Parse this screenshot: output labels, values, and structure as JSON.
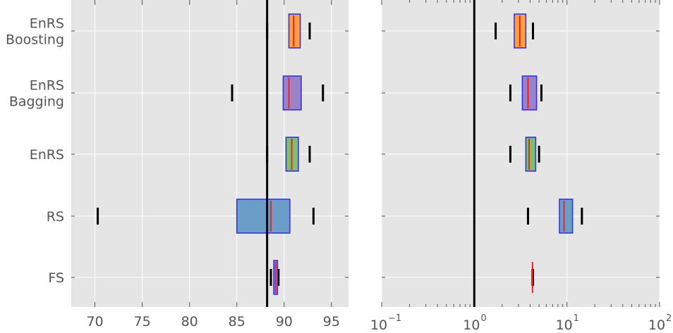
{
  "chart_data": [
    {
      "type": "box",
      "categories": [
        "EnRS Boosting",
        "EnRS Bagging",
        "EnRS",
        "RS",
        "FS"
      ],
      "category_lines": [
        [
          "EnRS",
          "Boosting"
        ],
        [
          "EnRS",
          "Bagging"
        ],
        [
          "EnRS"
        ],
        [
          "RS"
        ],
        [
          "FS"
        ]
      ],
      "xlim": [
        67.5,
        96.8
      ],
      "xticks": [
        70,
        75,
        80,
        85,
        90,
        95
      ],
      "xtick_labels": [
        "70",
        "75",
        "80",
        "85",
        "90",
        "95"
      ],
      "reference_line": 88.2,
      "grid": true,
      "boxes": [
        {
          "name": "EnRS Boosting",
          "whisker_low": 88.2,
          "q1": 90.5,
          "median": 91.0,
          "q3": 91.7,
          "whisker_high": 92.7,
          "color": "#ff9f40"
        },
        {
          "name": "EnRS Bagging",
          "whisker_low": 84.5,
          "q1": 89.9,
          "median": 90.5,
          "q3": 91.8,
          "whisker_high": 94.1,
          "color": "#9c82c6"
        },
        {
          "name": "EnRS",
          "whisker_low": 88.2,
          "q1": 90.2,
          "median": 90.8,
          "q3": 91.5,
          "whisker_high": 92.7,
          "color": "#7cbf6f"
        },
        {
          "name": "RS",
          "whisker_low": 70.3,
          "q1": 85.0,
          "median": 88.6,
          "q3": 90.6,
          "whisker_high": 93.1,
          "color": "#6a9ec8"
        },
        {
          "name": "FS",
          "whisker_low": 88.6,
          "q1": 88.9,
          "median": 89.1,
          "q3": 89.3,
          "whisker_high": 89.4,
          "color": "#9c82c6"
        }
      ]
    },
    {
      "type": "box",
      "xscale": "log",
      "xlim": [
        0.1,
        100
      ],
      "xticks": [
        0.1,
        1,
        10,
        100
      ],
      "xtick_labels": [
        {
          "base": "10",
          "exp": "−1"
        },
        {
          "base": "10",
          "exp": "0"
        },
        {
          "base": "10",
          "exp": "1"
        },
        {
          "base": "10",
          "exp": "2"
        }
      ],
      "reference_line": 1.0,
      "grid": true,
      "boxes": [
        {
          "name": "EnRS Boosting",
          "whisker_low": 1.7,
          "q1": 2.7,
          "median": 3.1,
          "q3": 3.6,
          "whisker_high": 4.3,
          "color": "#ff9f40"
        },
        {
          "name": "EnRS Bagging",
          "whisker_low": 2.45,
          "q1": 3.3,
          "median": 3.8,
          "q3": 4.7,
          "whisker_high": 5.3,
          "color": "#9c82c6"
        },
        {
          "name": "EnRS",
          "whisker_low": 2.45,
          "q1": 3.6,
          "median": 3.9,
          "q3": 4.6,
          "whisker_high": 5.0,
          "color": "#7cbf6f"
        },
        {
          "name": "RS",
          "whisker_low": 3.8,
          "q1": 8.3,
          "median": 9.3,
          "q3": 11.5,
          "whisker_high": 14.5,
          "color": "#6a9ec8"
        },
        {
          "name": "FS",
          "whisker_low": 4.25,
          "q1": 4.25,
          "median": 4.25,
          "q3": 4.25,
          "whisker_high": 4.3,
          "color": "#9c82c6"
        }
      ]
    }
  ]
}
